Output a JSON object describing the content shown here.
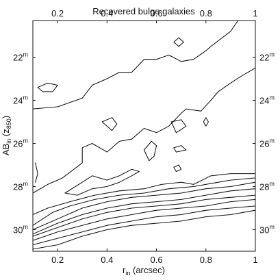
{
  "chart_data": {
    "type": "line",
    "title": "Recovered bulge galaxies",
    "xlabel": {
      "main": "r",
      "sub": "in",
      "rest": " (arcsec)"
    },
    "ylabel": {
      "main": "AB",
      "sub": "in",
      "rest": " (z",
      "sub2": "850",
      "end": ")"
    },
    "xlim": [
      0.1,
      1.0
    ],
    "ylim": [
      20.3,
      31.0
    ],
    "y_inverted": true,
    "grid": false,
    "x_ticks": [
      0.2,
      0.4,
      0.6,
      0.8,
      1.0
    ],
    "x_tick_labels": [
      "0.2",
      "0.4",
      "0.6",
      "0.8",
      "1"
    ],
    "y_ticks": [
      22,
      24,
      26,
      28,
      30
    ],
    "y_tick_labels": [
      "22",
      "24",
      "26",
      "28",
      "30"
    ],
    "y_tick_superscript": "m",
    "series": [
      {
        "points": [
          [
            0.1,
            24.4
          ],
          [
            0.2,
            24.3
          ],
          [
            0.3,
            23.9
          ],
          [
            0.34,
            23.3
          ],
          [
            0.4,
            23.0
          ],
          [
            0.45,
            22.7
          ],
          [
            0.5,
            22.7
          ],
          [
            0.55,
            22.1
          ],
          [
            0.6,
            22.1
          ],
          [
            0.65,
            21.9
          ],
          [
            0.7,
            22.2
          ],
          [
            0.75,
            22.1
          ],
          [
            0.8,
            21.7
          ],
          [
            0.82,
            21.5
          ],
          [
            0.9,
            20.8
          ],
          [
            0.93,
            20.3
          ]
        ]
      },
      {
        "points": [
          [
            0.12,
            23.4
          ],
          [
            0.16,
            23.2
          ],
          [
            0.2,
            23.3
          ],
          [
            0.18,
            23.6
          ],
          [
            0.14,
            23.6
          ],
          [
            0.12,
            23.4
          ]
        ]
      },
      {
        "points": [
          [
            0.38,
            25.0
          ],
          [
            0.42,
            24.8
          ],
          [
            0.44,
            25.1
          ],
          [
            0.42,
            25.4
          ],
          [
            0.38,
            25.0
          ]
        ]
      },
      {
        "points": [
          [
            0.66,
            25.0
          ],
          [
            0.7,
            24.9
          ],
          [
            0.72,
            25.2
          ],
          [
            0.68,
            25.5
          ],
          [
            0.66,
            25.0
          ]
        ]
      },
      {
        "points": [
          [
            0.67,
            21.3
          ],
          [
            0.69,
            21.1
          ],
          [
            0.71,
            21.3
          ],
          [
            0.69,
            21.5
          ],
          [
            0.67,
            21.3
          ]
        ]
      },
      {
        "points": [
          [
            0.79,
            25.0
          ],
          [
            0.8,
            24.8
          ],
          [
            0.81,
            25.0
          ],
          [
            0.8,
            25.2
          ],
          [
            0.79,
            25.0
          ]
        ]
      },
      {
        "points": [
          [
            0.55,
            26.3
          ],
          [
            0.58,
            25.9
          ],
          [
            0.6,
            26.1
          ],
          [
            0.59,
            26.6
          ],
          [
            0.57,
            26.8
          ],
          [
            0.55,
            26.3
          ]
        ]
      },
      {
        "points": [
          [
            0.67,
            26.2
          ],
          [
            0.7,
            26.1
          ],
          [
            0.72,
            26.3
          ],
          [
            0.68,
            26.4
          ],
          [
            0.67,
            26.2
          ]
        ]
      },
      {
        "points": [
          [
            0.67,
            27.1
          ],
          [
            0.69,
            27.0
          ],
          [
            0.7,
            27.2
          ],
          [
            0.68,
            27.3
          ],
          [
            0.67,
            27.1
          ]
        ]
      },
      {
        "points": [
          [
            0.11,
            26.9
          ],
          [
            0.12,
            27.4
          ],
          [
            0.11,
            27.8
          ]
        ]
      },
      {
        "points": [
          [
            0.1,
            28.3
          ],
          [
            0.16,
            27.9
          ],
          [
            0.22,
            27.6
          ],
          [
            0.3,
            26.9
          ],
          [
            0.3,
            26.2
          ],
          [
            0.34,
            26.0
          ],
          [
            0.4,
            26.4
          ],
          [
            0.45,
            25.9
          ],
          [
            0.5,
            25.8
          ],
          [
            0.55,
            25.3
          ],
          [
            0.6,
            25.5
          ],
          [
            0.65,
            25.2
          ],
          [
            0.7,
            24.6
          ],
          [
            0.72,
            24.4
          ],
          [
            0.78,
            24.5
          ],
          [
            0.82,
            24.0
          ],
          [
            0.85,
            23.6
          ],
          [
            0.9,
            23.2
          ],
          [
            0.94,
            22.9
          ],
          [
            1.0,
            22.5
          ]
        ]
      },
      {
        "points": [
          [
            0.23,
            28.3
          ],
          [
            0.3,
            27.8
          ],
          [
            0.34,
            27.5
          ],
          [
            0.4,
            27.7
          ],
          [
            0.45,
            27.5
          ],
          [
            0.5,
            27.2
          ],
          [
            0.53,
            27.3
          ],
          [
            0.5,
            27.5
          ],
          [
            0.45,
            27.8
          ],
          [
            0.4,
            28.0
          ],
          [
            0.34,
            28.1
          ],
          [
            0.28,
            28.4
          ],
          [
            0.23,
            28.3
          ]
        ]
      },
      {
        "points": [
          [
            0.1,
            29.3
          ],
          [
            0.16,
            29.0
          ],
          [
            0.25,
            28.7
          ],
          [
            0.35,
            28.4
          ],
          [
            0.45,
            28.2
          ],
          [
            0.55,
            28.1
          ],
          [
            0.62,
            27.9
          ],
          [
            0.7,
            27.8
          ],
          [
            0.75,
            27.9
          ],
          [
            0.82,
            27.5
          ],
          [
            0.9,
            27.4
          ],
          [
            1.0,
            27.4
          ]
        ]
      },
      {
        "points": [
          [
            0.1,
            29.8
          ],
          [
            0.18,
            29.2
          ],
          [
            0.25,
            28.9
          ],
          [
            0.35,
            28.6
          ],
          [
            0.45,
            28.4
          ],
          [
            0.55,
            28.3
          ],
          [
            0.65,
            28.1
          ],
          [
            0.75,
            28.0
          ],
          [
            0.85,
            27.8
          ],
          [
            0.9,
            27.7
          ],
          [
            1.0,
            27.6
          ]
        ]
      },
      {
        "points": [
          [
            0.1,
            30.0
          ],
          [
            0.2,
            29.5
          ],
          [
            0.3,
            29.0
          ],
          [
            0.4,
            28.7
          ],
          [
            0.5,
            28.5
          ],
          [
            0.6,
            28.4
          ],
          [
            0.7,
            28.3
          ],
          [
            0.8,
            28.1
          ],
          [
            0.9,
            28.0
          ],
          [
            1.0,
            27.8
          ]
        ]
      },
      {
        "points": [
          [
            0.1,
            30.2
          ],
          [
            0.2,
            29.7
          ],
          [
            0.3,
            29.3
          ],
          [
            0.4,
            29.0
          ],
          [
            0.5,
            28.8
          ],
          [
            0.6,
            28.7
          ],
          [
            0.7,
            28.6
          ],
          [
            0.8,
            28.4
          ],
          [
            0.9,
            28.2
          ],
          [
            1.0,
            28.1
          ]
        ]
      },
      {
        "points": [
          [
            0.1,
            30.3
          ],
          [
            0.2,
            29.9
          ],
          [
            0.3,
            29.5
          ],
          [
            0.4,
            29.2
          ],
          [
            0.5,
            29.0
          ],
          [
            0.6,
            28.9
          ],
          [
            0.7,
            28.8
          ],
          [
            0.8,
            28.6
          ],
          [
            0.9,
            28.5
          ],
          [
            1.0,
            28.4
          ]
        ]
      },
      {
        "points": [
          [
            0.1,
            30.5
          ],
          [
            0.2,
            30.1
          ],
          [
            0.3,
            29.8
          ],
          [
            0.4,
            29.5
          ],
          [
            0.5,
            29.3
          ],
          [
            0.6,
            29.1
          ],
          [
            0.7,
            29.0
          ],
          [
            0.8,
            28.9
          ],
          [
            0.9,
            28.7
          ],
          [
            1.0,
            28.6
          ]
        ]
      },
      {
        "points": [
          [
            0.1,
            30.7
          ],
          [
            0.2,
            30.4
          ],
          [
            0.3,
            30.1
          ],
          [
            0.4,
            29.8
          ],
          [
            0.5,
            29.6
          ],
          [
            0.6,
            29.4
          ],
          [
            0.7,
            29.3
          ],
          [
            0.8,
            29.1
          ],
          [
            0.9,
            29.0
          ],
          [
            1.0,
            28.9
          ]
        ]
      },
      {
        "points": [
          [
            0.1,
            30.9
          ],
          [
            0.2,
            30.7
          ],
          [
            0.3,
            30.3
          ],
          [
            0.4,
            30.0
          ],
          [
            0.5,
            29.8
          ],
          [
            0.6,
            29.7
          ],
          [
            0.7,
            29.6
          ],
          [
            0.8,
            29.4
          ],
          [
            0.9,
            29.3
          ],
          [
            1.0,
            29.1
          ]
        ]
      }
    ]
  }
}
